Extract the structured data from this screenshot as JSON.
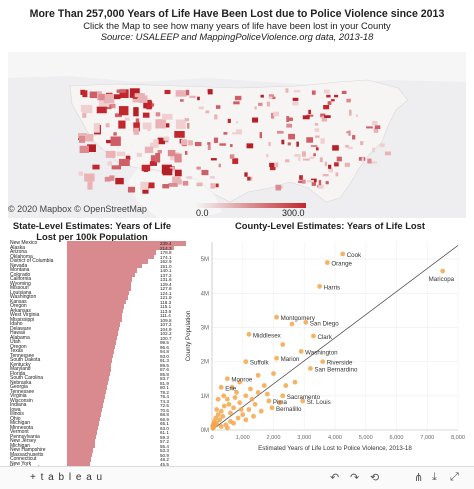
{
  "header": {
    "title": "More Than 257,000 Years of Life Have Been Lost due to Police Violence since 2013",
    "subtitle": "Click the Map to see how many years of life have been lost in your County",
    "source": "Source: USALEEP and MappingPoliceViolence.org data, 2013-18"
  },
  "map": {
    "attribution": "© 2020 Mapbox © OpenStreetMap",
    "legend_min": "0.0",
    "legend_max": "300.0",
    "colors": {
      "low": "#f4f4f4",
      "high": "#c1272d",
      "land": "#f3f3f5",
      "water": "#eeeef0"
    }
  },
  "state_panel": {
    "title_line1": "State-Level Estimates: Years of Life",
    "title_line2": "Lost per 100k Population"
  },
  "scatter_panel": {
    "title": "County-Level Estimates: Years of Life Lost"
  },
  "chart_data": [
    {
      "type": "bar",
      "title": "State-Level Estimates: Years of Life Lost per 100k Population",
      "orientation": "horizontal",
      "categories": [
        "New Mexico",
        "Alaska",
        "Arizona",
        "Oklahoma",
        "District of Columbia",
        "Nevada",
        "Montana",
        "Colorado",
        "California",
        "Wyoming",
        "Missouri",
        "Louisiana",
        "Washington",
        "Kansas",
        "Oregon",
        "Arkansas",
        "West Virginia",
        "Mississippi",
        "Idaho",
        "Delaware",
        "Hawaii",
        "Alabama",
        "Utah",
        "Oregon",
        "Texas",
        "Tennessee",
        "South Dakota",
        "Kentucky",
        "Maryland",
        "Florida",
        "South Carolina",
        "Nebraska",
        "Georgia",
        "Tennessee",
        "Virginia",
        "Wisconsin",
        "Indiana",
        "Iowa",
        "Illinois",
        "Ohio",
        "Michigan",
        "Minnesota",
        "Vermont",
        "Pennsylvania",
        "New Jersey",
        "Michigan",
        "New Hampshire",
        "Massachusetts",
        "Connecticut",
        "New York",
        "Rhode Island"
      ],
      "values": [
        239.4,
        214.3,
        178.8,
        174.1,
        162.9,
        151.0,
        140.1,
        137.2,
        131.6,
        129.4,
        127.8,
        124.1,
        121.9,
        118.3,
        115.1,
        113.6,
        111.4,
        109.8,
        107.2,
        104.9,
        102.2,
        100.7,
        98.5,
        96.6,
        94.8,
        93.0,
        91.3,
        89.5,
        87.6,
        85.8,
        83.7,
        81.9,
        80.1,
        78.2,
        76.4,
        74.3,
        72.5,
        70.6,
        68.8,
        66.9,
        65.1,
        63.0,
        61.1,
        59.3,
        57.2,
        55.4,
        53.3,
        50.9,
        48.2,
        45.5,
        39.9
      ],
      "color": "#d98a8f"
    },
    {
      "type": "scatter",
      "title": "County-Level Estimates: Years of Life Lost",
      "xlabel": "Estimated Years of Life Lost to Police Violence, 2013-18",
      "ylabel": "County Population",
      "xlim": [
        0,
        8000
      ],
      "ylim": [
        0,
        5500000
      ],
      "x_ticks": [
        "0",
        "1,000",
        "2,000",
        "3,000",
        "4,000",
        "5,000",
        "6,000",
        "7,000",
        "8,000"
      ],
      "y_ticks": [
        "0M",
        "1M",
        "2M",
        "3M",
        "4M",
        "5M"
      ],
      "color": "#f5a64a",
      "points": [
        {
          "x": 7500,
          "y": 4650000,
          "label": "Maricopa"
        },
        {
          "x": 4250,
          "y": 5150000,
          "label": "Cook"
        },
        {
          "x": 3750,
          "y": 4900000,
          "label": "Orange"
        },
        {
          "x": 3500,
          "y": 4200000,
          "label": "Harris"
        },
        {
          "x": 2100,
          "y": 3300000,
          "label": "Montgomery"
        },
        {
          "x": 3050,
          "y": 3150000,
          "label": "San Diego"
        },
        {
          "x": 3300,
          "y": 2750000,
          "label": "Clark"
        },
        {
          "x": 1200,
          "y": 2800000,
          "label": "Middlesex"
        },
        {
          "x": 2900,
          "y": 2300000,
          "label": "Washington"
        },
        {
          "x": 2100,
          "y": 2100000,
          "label": "Marion"
        },
        {
          "x": 1100,
          "y": 2000000,
          "label": "Suffolk"
        },
        {
          "x": 3600,
          "y": 2000000,
          "label": "Riverside"
        },
        {
          "x": 3200,
          "y": 1800000,
          "label": "San Bernardino"
        },
        {
          "x": 500,
          "y": 1500000,
          "label": "Monroe"
        },
        {
          "x": 300,
          "y": 1250000,
          "label": "Erie"
        },
        {
          "x": 2300,
          "y": 1000000,
          "label": "Sacramento"
        },
        {
          "x": 1850,
          "y": 850000,
          "label": "Pima"
        },
        {
          "x": 2950,
          "y": 850000,
          "label": "St. Louis"
        },
        {
          "x": 1950,
          "y": 650000,
          "label": "Bernalillo"
        },
        {
          "x": 2600,
          "y": 3100000
        },
        {
          "x": 2300,
          "y": 2500000
        },
        {
          "x": 2000,
          "y": 1650000
        },
        {
          "x": 1700,
          "y": 1300000
        },
        {
          "x": 1500,
          "y": 1100000
        },
        {
          "x": 1300,
          "y": 900000
        },
        {
          "x": 1100,
          "y": 1000000
        },
        {
          "x": 900,
          "y": 800000
        },
        {
          "x": 800,
          "y": 1100000
        },
        {
          "x": 700,
          "y": 650000
        },
        {
          "x": 600,
          "y": 500000
        },
        {
          "x": 500,
          "y": 900000
        },
        {
          "x": 400,
          "y": 700000
        },
        {
          "x": 350,
          "y": 400000
        },
        {
          "x": 300,
          "y": 550000
        },
        {
          "x": 250,
          "y": 300000
        },
        {
          "x": 200,
          "y": 450000
        },
        {
          "x": 150,
          "y": 200000
        },
        {
          "x": 120,
          "y": 350000
        },
        {
          "x": 100,
          "y": 150000
        },
        {
          "x": 80,
          "y": 250000
        },
        {
          "x": 60,
          "y": 100000
        },
        {
          "x": 50,
          "y": 180000
        },
        {
          "x": 40,
          "y": 80000
        },
        {
          "x": 30,
          "y": 50000
        },
        {
          "x": 20,
          "y": 120000
        },
        {
          "x": 600,
          "y": 250000
        },
        {
          "x": 450,
          "y": 150000
        },
        {
          "x": 1000,
          "y": 450000
        },
        {
          "x": 1200,
          "y": 600000
        },
        {
          "x": 1400,
          "y": 750000
        },
        {
          "x": 1600,
          "y": 550000
        },
        {
          "x": 850,
          "y": 350000
        },
        {
          "x": 700,
          "y": 200000
        },
        {
          "x": 1100,
          "y": 300000
        },
        {
          "x": 1800,
          "y": 1050000
        },
        {
          "x": 2400,
          "y": 1300000
        },
        {
          "x": 2700,
          "y": 1400000
        },
        {
          "x": 900,
          "y": 1400000
        },
        {
          "x": 650,
          "y": 1250000
        },
        {
          "x": 1500,
          "y": 1600000
        },
        {
          "x": 1250,
          "y": 1200000
        },
        {
          "x": 200,
          "y": 900000
        },
        {
          "x": 380,
          "y": 1000000
        },
        {
          "x": 550,
          "y": 750000
        },
        {
          "x": 750,
          "y": 950000
        },
        {
          "x": 950,
          "y": 600000
        },
        {
          "x": 1350,
          "y": 400000
        },
        {
          "x": 300,
          "y": 100000
        },
        {
          "x": 500,
          "y": 60000
        },
        {
          "x": 150,
          "y": 600000
        },
        {
          "x": 2200,
          "y": 800000
        }
      ],
      "reference_line": {
        "from": [
          0,
          0
        ],
        "to": [
          8000,
          5400000
        ]
      }
    }
  ],
  "footer": {
    "logo": "+ t a b l e a u",
    "undo": "↶",
    "redo": "↷",
    "revert": "⟲",
    "share": "⋔",
    "download": "⤓",
    "fullscreen": "⤢"
  }
}
